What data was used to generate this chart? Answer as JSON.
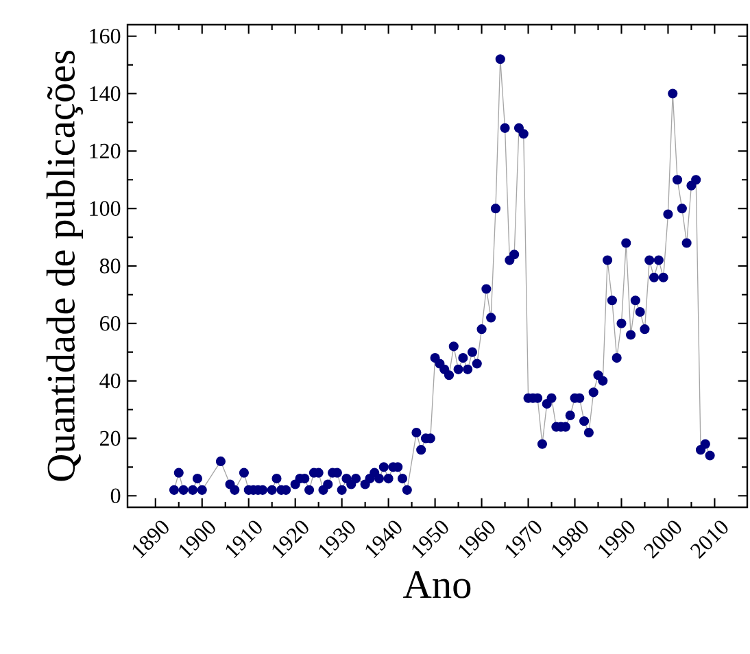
{
  "chart_data": {
    "type": "line",
    "xlabel": "Ano",
    "ylabel": "Quantidade de publicações",
    "xlim": [
      1884,
      2017
    ],
    "xticks": [
      1890,
      1900,
      1910,
      1920,
      1930,
      1940,
      1950,
      1960,
      1970,
      1980,
      1990,
      2000,
      2010
    ],
    "ylim": [
      -4,
      164
    ],
    "yticks": [
      0,
      20,
      40,
      60,
      80,
      100,
      120,
      140,
      160
    ],
    "marker": "circle",
    "line_style": "solid",
    "series": [
      {
        "color": "#000080",
        "x": [
          1894,
          1895,
          1896,
          1898,
          1899,
          1900,
          1904,
          1906,
          1907,
          1909,
          1910,
          1911,
          1912,
          1913,
          1915,
          1916,
          1917,
          1918,
          1920,
          1921,
          1922,
          1923,
          1924,
          1925,
          1926,
          1927,
          1928,
          1929,
          1930,
          1931,
          1932,
          1933,
          1935,
          1936,
          1937,
          1938,
          1939,
          1940,
          1941,
          1942,
          1943,
          1944,
          1946,
          1947,
          1948,
          1949,
          1950,
          1951,
          1952,
          1953,
          1954,
          1955,
          1956,
          1957,
          1958,
          1959,
          1960,
          1961,
          1962,
          1963,
          1964,
          1965,
          1966,
          1967,
          1968,
          1969,
          1970,
          1971,
          1972,
          1973,
          1974,
          1975,
          1976,
          1977,
          1978,
          1979,
          1980,
          1981,
          1982,
          1983,
          1984,
          1985,
          1986,
          1987,
          1988,
          1989,
          1990,
          1991,
          1992,
          1993,
          1994,
          1995,
          1996,
          1997,
          1998,
          1999,
          2000,
          2001,
          2002,
          2003,
          2004,
          2005,
          2006,
          2007,
          2008,
          2009
        ],
        "values": [
          2,
          8,
          2,
          2,
          6,
          2,
          12,
          4,
          2,
          8,
          2,
          2,
          2,
          2,
          2,
          6,
          2,
          2,
          4,
          6,
          6,
          2,
          8,
          8,
          2,
          4,
          8,
          8,
          2,
          6,
          4,
          6,
          4,
          6,
          8,
          6,
          10,
          6,
          10,
          10,
          6,
          2,
          22,
          16,
          20,
          20,
          48,
          46,
          44,
          42,
          52,
          44,
          48,
          44,
          50,
          46,
          58,
          72,
          62,
          100,
          152,
          128,
          82,
          84,
          128,
          126,
          34,
          34,
          34,
          18,
          32,
          34,
          24,
          24,
          24,
          28,
          34,
          34,
          26,
          22,
          36,
          42,
          40,
          82,
          68,
          48,
          60,
          88,
          56,
          68,
          64,
          58,
          82,
          76,
          82,
          76,
          98,
          140,
          110,
          100,
          88,
          108,
          110,
          16,
          18,
          14
        ]
      }
    ]
  }
}
